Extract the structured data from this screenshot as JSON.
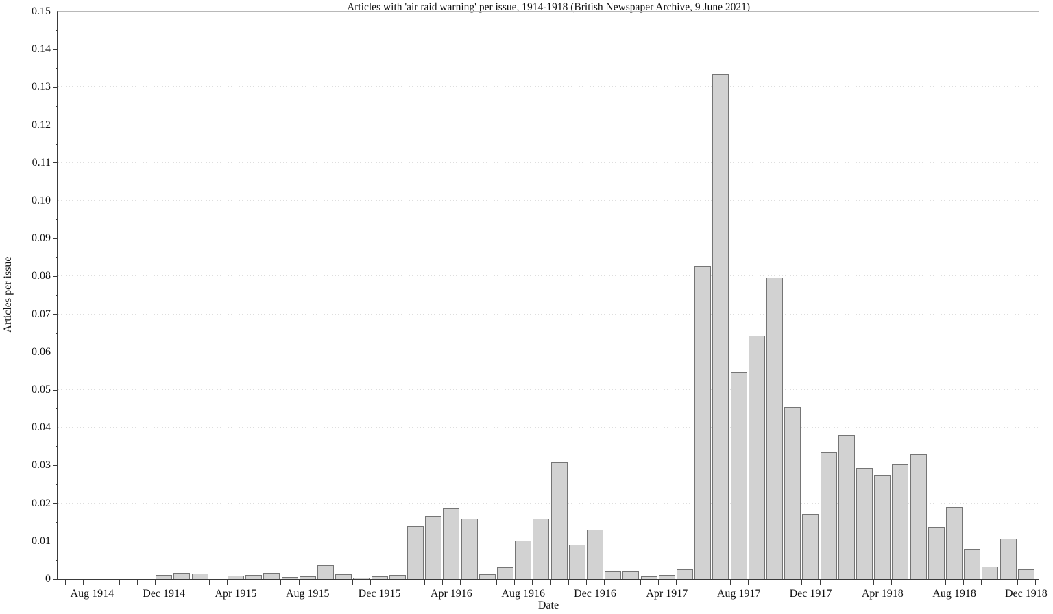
{
  "chart_data": {
    "type": "bar",
    "title": "Articles with 'air raid warning' per issue, 1914-1918 (British Newspaper Archive, 9 June 2021)",
    "xlabel": "Date",
    "ylabel": "Articles per issue",
    "ylim": [
      0,
      0.15
    ],
    "ytick_step": 0.01,
    "ytick_minor_step": 0.005,
    "ytick_labels": [
      "0",
      "0.01",
      "0.02",
      "0.03",
      "0.04",
      "0.05",
      "0.06",
      "0.07",
      "0.08",
      "0.09",
      "0.10",
      "0.11",
      "0.12",
      "0.13",
      "0.14",
      "0.15"
    ],
    "grid": "horizontal dotted lines at each 0.01, on",
    "legend": "none",
    "categories": [
      "Jul 1914",
      "Aug 1914",
      "Sep 1914",
      "Oct 1914",
      "Nov 1914",
      "Dec 1914",
      "Jan 1915",
      "Feb 1915",
      "Mar 1915",
      "Apr 1915",
      "May 1915",
      "Jun 1915",
      "Jul 1915",
      "Aug 1915",
      "Sep 1915",
      "Oct 1915",
      "Nov 1915",
      "Dec 1915",
      "Jan 1916",
      "Feb 1916",
      "Mar 1916",
      "Apr 1916",
      "May 1916",
      "Jun 1916",
      "Jul 1916",
      "Aug 1916",
      "Sep 1916",
      "Oct 1916",
      "Nov 1916",
      "Dec 1916",
      "Jan 1917",
      "Feb 1917",
      "Mar 1917",
      "Apr 1917",
      "May 1917",
      "Jun 1917",
      "Jul 1917",
      "Aug 1917",
      "Sep 1917",
      "Oct 1917",
      "Nov 1917",
      "Dec 1917",
      "Jan 1918",
      "Feb 1918",
      "Mar 1918",
      "Apr 1918",
      "May 1918",
      "Jun 1918",
      "Jul 1918",
      "Aug 1918",
      "Sep 1918",
      "Oct 1918",
      "Nov 1918",
      "Dec 1918"
    ],
    "values": [
      0,
      0,
      0,
      0,
      0,
      0.0011,
      0.0017,
      0.0015,
      0,
      0.0009,
      0.0011,
      0.0016,
      0.0006,
      0.0007,
      0.0037,
      0.0013,
      0.0004,
      0.0007,
      0.0011,
      0.014,
      0.0166,
      0.0186,
      0.016,
      0.0012,
      0.003,
      0.0101,
      0.0159,
      0.0309,
      0.0091,
      0.013,
      0.0021,
      0.0022,
      0.0008,
      0.0011,
      0.0026,
      0.0828,
      0.1335,
      0.0547,
      0.0643,
      0.0797,
      0.0454,
      0.0173,
      0.0336,
      0.038,
      0.0294,
      0.0275,
      0.0304,
      0.0329,
      0.0137,
      0.019,
      0.0079,
      0.0032,
      0.0107,
      0.0025
    ],
    "x_tick_label_indices": [
      1,
      5,
      9,
      13,
      17,
      21,
      25,
      29,
      33,
      37,
      41,
      45,
      49,
      53
    ],
    "x_tick_labels": [
      "Aug 1914",
      "Dec 1914",
      "Apr 1915",
      "Aug 1915",
      "Dec 1915",
      "Apr 1916",
      "Aug 1916",
      "Dec 1916",
      "Apr 1917",
      "Aug 1917",
      "Dec 1917",
      "Apr 1918",
      "Aug 1918",
      "Dec 1918"
    ],
    "colors": {
      "background": "#ffffff",
      "bar_fill": "#d2d2d2",
      "bar_border": "#757575",
      "axis": "#3a3a3a",
      "box_border": "#b8b8b8",
      "grid": "#dedede",
      "text": "#111111"
    }
  }
}
